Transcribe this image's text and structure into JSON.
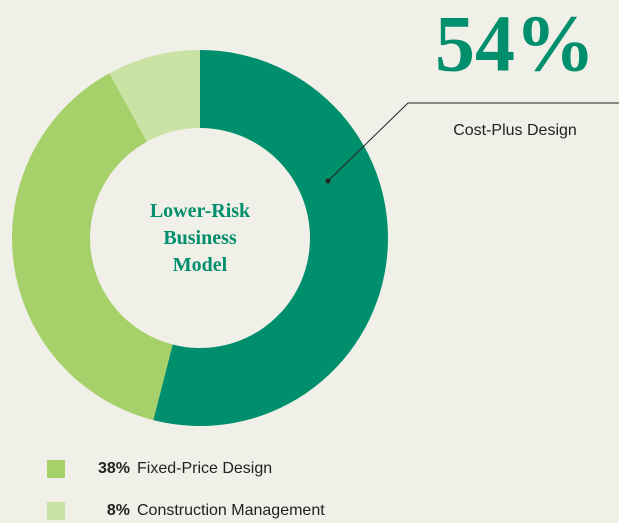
{
  "chart_data": {
    "type": "donut",
    "center_label": "Lower-Risk Business Model",
    "categories": [
      "Cost-Plus Design",
      "Fixed-Price Design",
      "Construction Management"
    ],
    "values": [
      54,
      38,
      8
    ],
    "value_labels": [
      "54%",
      "38%",
      "8%"
    ],
    "colors": [
      "#008f6c",
      "#a6d06a",
      "#c9e3a5"
    ]
  }
}
